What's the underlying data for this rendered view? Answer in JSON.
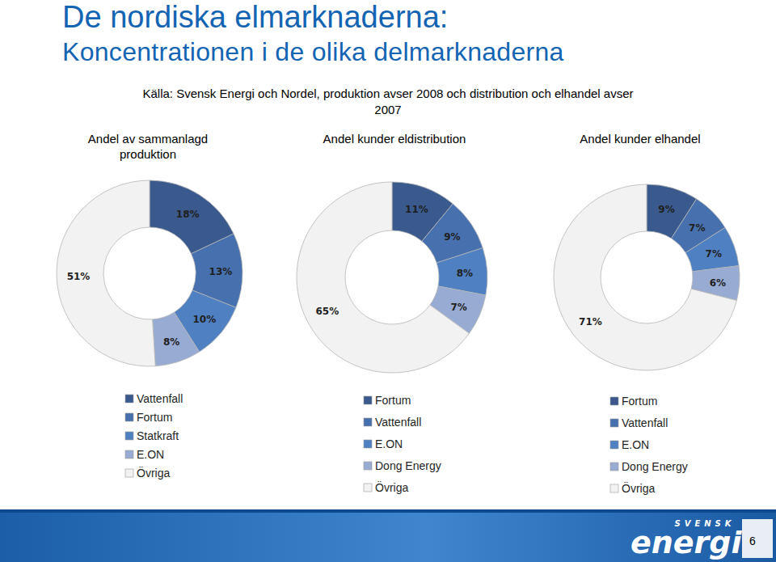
{
  "header": {
    "title": "De nordiska elmarknaderna:",
    "subtitle": "Koncentrationen i de olika delmarknaderna",
    "source": "Källa: Svensk Energi och Nordel, produktion avser 2008 och distribution och elhandel avser 2007"
  },
  "chart_data": [
    {
      "type": "pie",
      "title": "Andel av sammanlagd produktion",
      "categories": [
        "Vattenfall",
        "Fortum",
        "Statkraft",
        "E.ON",
        "Övriga"
      ],
      "values": [
        18,
        13,
        10,
        8,
        51
      ],
      "value_labels": [
        "18%",
        "13%",
        "10%",
        "8%",
        "51%"
      ],
      "colors": [
        "#3a5a8e",
        "#4670ae",
        "#4f80c2",
        "#97abd3",
        "#f2f2f2"
      ],
      "data_labels": true
    },
    {
      "type": "pie",
      "title": "Andel kunder eldistribution",
      "categories": [
        "Fortum",
        "Vattenfall",
        "E.ON",
        "Dong Energy",
        "Övriga"
      ],
      "values": [
        11,
        9,
        8,
        7,
        65
      ],
      "value_labels": [
        "11%",
        "9%",
        "8%",
        "7%",
        "65%"
      ],
      "colors": [
        "#3a5a8e",
        "#4670ae",
        "#4f80c2",
        "#97abd3",
        "#f2f2f2"
      ],
      "data_labels": true
    },
    {
      "type": "pie",
      "title": "Andel kunder elhandel",
      "categories": [
        "Fortum",
        "Vattenfall",
        "E.ON",
        "Dong Energy",
        "Övriga"
      ],
      "values": [
        9,
        7,
        7,
        6,
        71
      ],
      "value_labels": [
        "9%",
        "7%",
        "7%",
        "6%",
        "71%"
      ],
      "colors": [
        "#3a5a8e",
        "#4670ae",
        "#4f80c2",
        "#97abd3",
        "#f2f2f2"
      ],
      "data_labels": true
    }
  ],
  "footer": {
    "logo_top": "SVENSK",
    "logo": "energi",
    "page": "6"
  }
}
